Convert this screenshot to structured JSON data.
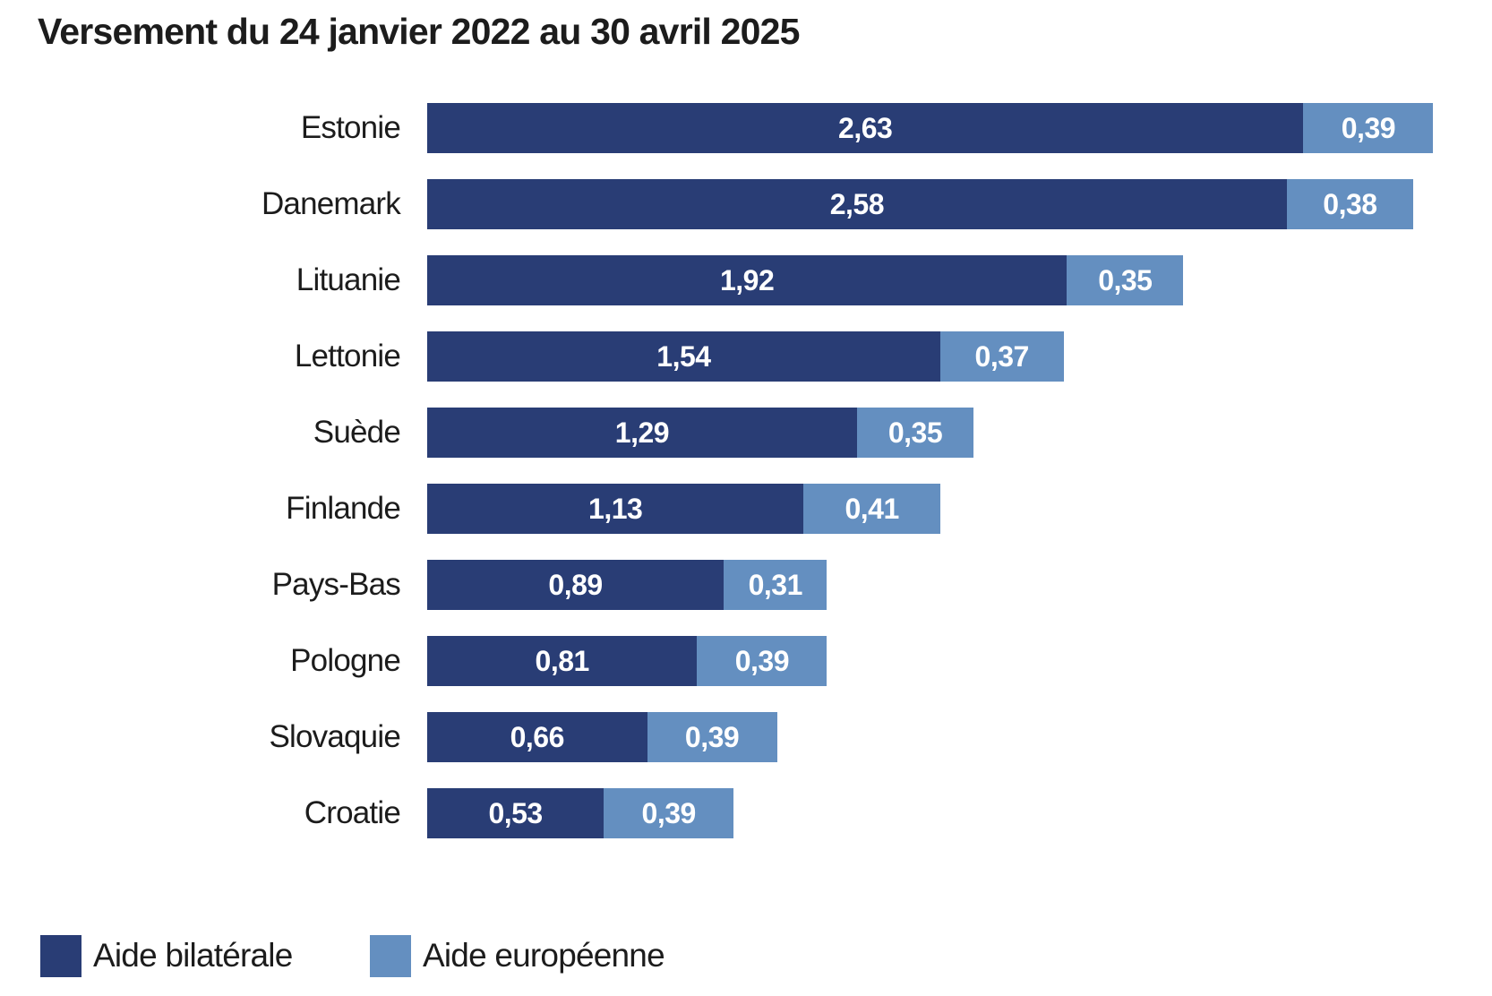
{
  "title": "Versement du 24 janvier 2022 au 30 avril 2025",
  "colors": {
    "bilateral": "#293D75",
    "european": "#648FC0",
    "value_label": "#ffffff",
    "text": "#1c1c1c",
    "background": "#ffffff"
  },
  "chart_data": {
    "type": "bar",
    "orientation": "horizontal",
    "stacked": true,
    "grid": false,
    "legend_position": "bottom-left",
    "xlim": [
      0,
      3.02
    ],
    "title": "Versement du 24 janvier 2022 au 30 avril 2025",
    "categories": [
      "Estonie",
      "Danemark",
      "Lituanie",
      "Lettonie",
      "Suède",
      "Finlande",
      "Pays-Bas",
      "Pologne",
      "Slovaquie",
      "Croatie"
    ],
    "series": [
      {
        "name": "Aide bilatérale",
        "color": "#293D75",
        "values": [
          2.63,
          2.58,
          1.92,
          1.54,
          1.29,
          1.13,
          0.89,
          0.81,
          0.66,
          0.53
        ],
        "labels": [
          "2,63",
          "2,58",
          "1,92",
          "1,54",
          "1,29",
          "1,13",
          "0,89",
          "0,81",
          "0,66",
          "0,53"
        ]
      },
      {
        "name": "Aide européenne",
        "color": "#648FC0",
        "values": [
          0.39,
          0.38,
          0.35,
          0.37,
          0.35,
          0.41,
          0.31,
          0.39,
          0.39,
          0.39
        ],
        "labels": [
          "0,39",
          "0,38",
          "0,35",
          "0,37",
          "0,35",
          "0,41",
          "0,31",
          "0,39",
          "0,39",
          "0,39"
        ]
      }
    ]
  },
  "legend": {
    "items": [
      {
        "label": "Aide bilatérale",
        "color": "#293D75"
      },
      {
        "label": "Aide européenne",
        "color": "#648FC0"
      }
    ]
  }
}
